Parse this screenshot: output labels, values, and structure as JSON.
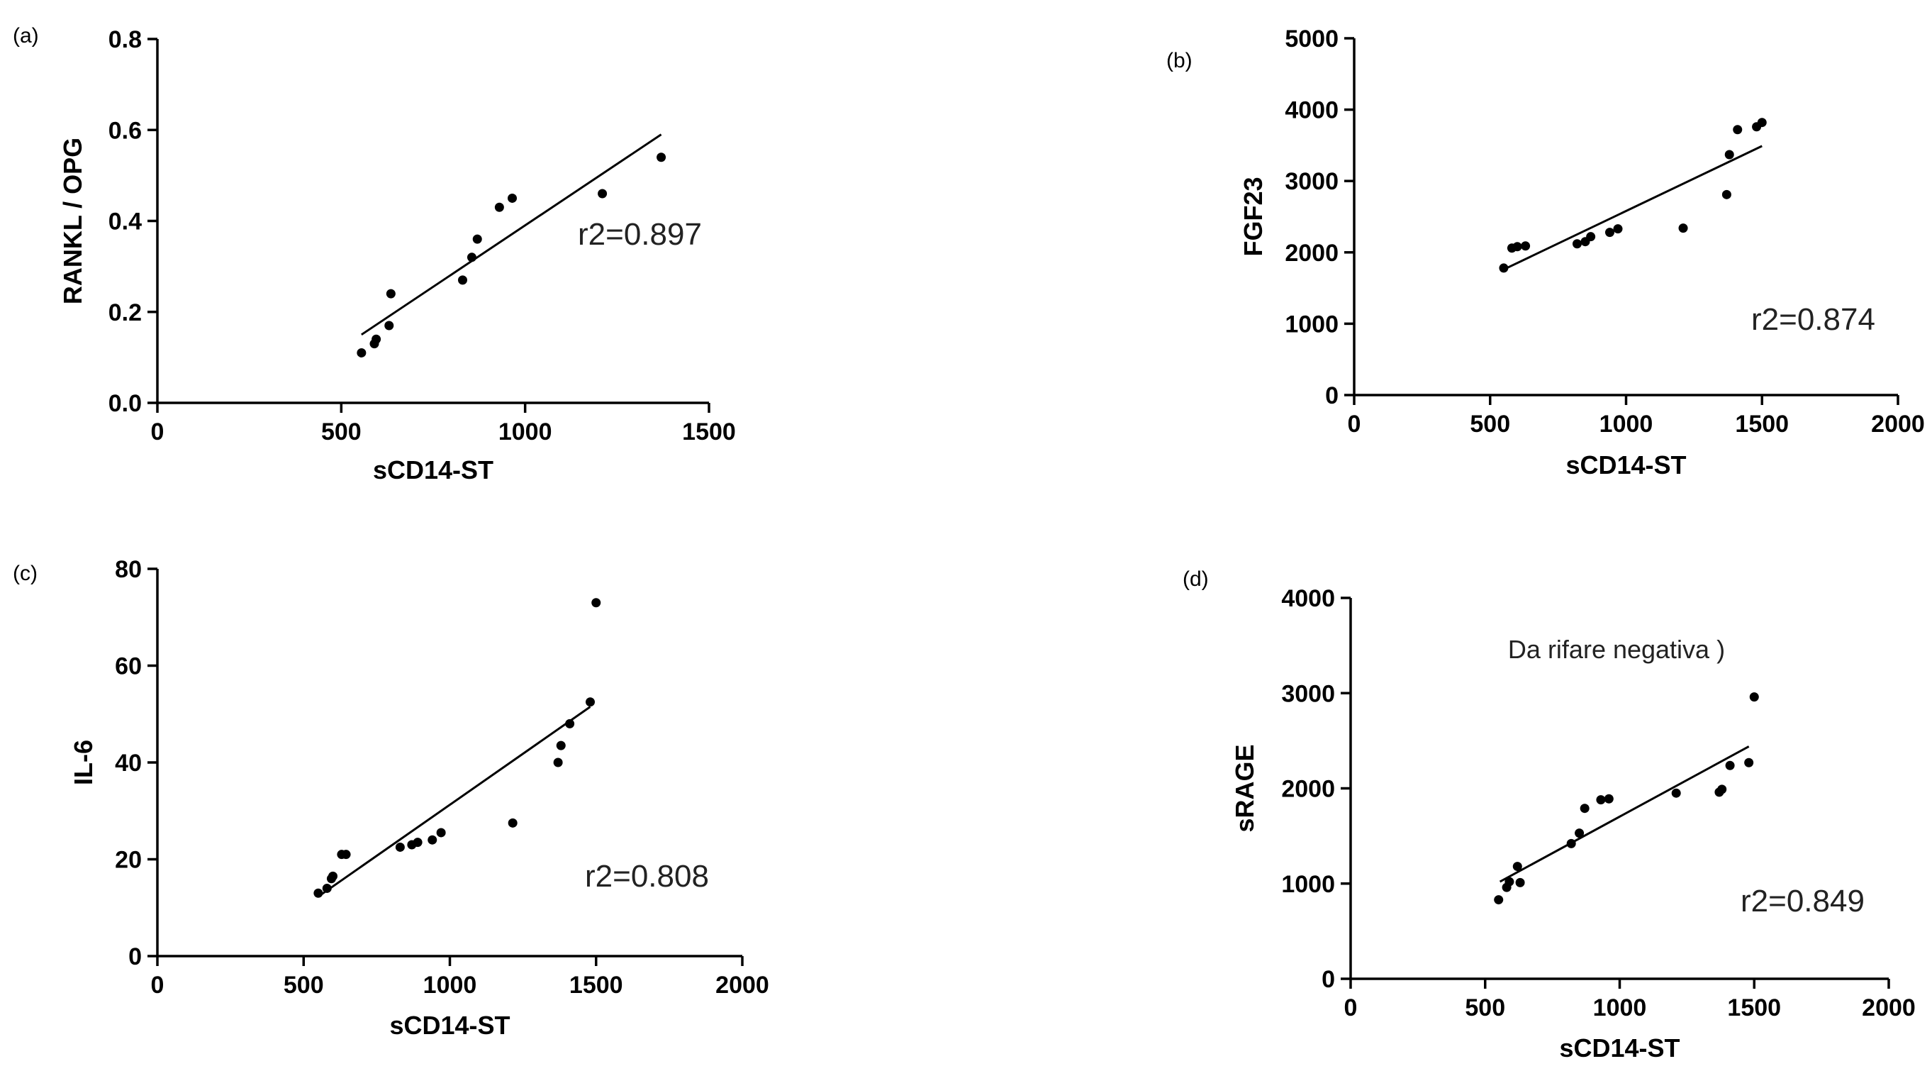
{
  "chart_data": [
    {
      "type": "scatter",
      "panel_label": "(a)",
      "xlabel": "sCD14-ST",
      "ylabel": "RANKL / OPG",
      "xlim": [
        0,
        1500
      ],
      "ylim": [
        0,
        0.8
      ],
      "xticks": [
        "0",
        "500",
        "1000",
        "1500"
      ],
      "yticks": [
        "0.0",
        "0.2",
        "0.4",
        "0.6",
        "0.8"
      ],
      "annotation": "r2=0.897",
      "note": "",
      "points": [
        [
          555,
          0.11
        ],
        [
          590,
          0.13
        ],
        [
          595,
          0.14
        ],
        [
          630,
          0.17
        ],
        [
          635,
          0.24
        ],
        [
          830,
          0.27
        ],
        [
          855,
          0.32
        ],
        [
          870,
          0.36
        ],
        [
          930,
          0.43
        ],
        [
          965,
          0.45
        ],
        [
          1210,
          0.46
        ],
        [
          1370,
          0.54
        ]
      ],
      "fit": [
        [
          555,
          0.15
        ],
        [
          1370,
          0.59
        ]
      ]
    },
    {
      "type": "scatter",
      "panel_label": "(b)",
      "xlabel": "sCD14-ST",
      "ylabel": "FGF23",
      "xlim": [
        0,
        2000
      ],
      "ylim": [
        0,
        5000
      ],
      "xticks": [
        "0",
        "500",
        "1000",
        "1500",
        "2000"
      ],
      "yticks": [
        "0",
        "1000",
        "2000",
        "3000",
        "4000",
        "5000"
      ],
      "annotation": "r2=0.874",
      "note": "",
      "points": [
        [
          550,
          1780
        ],
        [
          580,
          2060
        ],
        [
          600,
          2080
        ],
        [
          630,
          2090
        ],
        [
          820,
          2120
        ],
        [
          850,
          2150
        ],
        [
          870,
          2220
        ],
        [
          940,
          2280
        ],
        [
          970,
          2330
        ],
        [
          1210,
          2340
        ],
        [
          1370,
          2810
        ],
        [
          1380,
          3370
        ],
        [
          1410,
          3720
        ],
        [
          1480,
          3760
        ],
        [
          1500,
          3820
        ]
      ],
      "fit": [
        [
          550,
          1760
        ],
        [
          1500,
          3490
        ]
      ]
    },
    {
      "type": "scatter",
      "panel_label": "(c)",
      "xlabel": "sCD14-ST",
      "ylabel": "IL-6",
      "xlim": [
        0,
        2000
      ],
      "ylim": [
        0,
        80
      ],
      "xticks": [
        "0",
        "500",
        "1000",
        "1500",
        "2000"
      ],
      "yticks": [
        "0",
        "20",
        "40",
        "60",
        "80"
      ],
      "annotation": "r2=0.808",
      "note": "",
      "points": [
        [
          550,
          13
        ],
        [
          580,
          14
        ],
        [
          595,
          16
        ],
        [
          600,
          16.5
        ],
        [
          630,
          21
        ],
        [
          645,
          21
        ],
        [
          830,
          22.5
        ],
        [
          870,
          23
        ],
        [
          890,
          23.5
        ],
        [
          940,
          24
        ],
        [
          970,
          25.5
        ],
        [
          1215,
          27.5
        ],
        [
          1370,
          40
        ],
        [
          1380,
          43.5
        ],
        [
          1410,
          48
        ],
        [
          1480,
          52.5
        ],
        [
          1500,
          73
        ]
      ],
      "fit": [
        [
          555,
          12.5
        ],
        [
          1480,
          51.5
        ]
      ]
    },
    {
      "type": "scatter",
      "panel_label": "(d)",
      "xlabel": "sCD14-ST",
      "ylabel": "sRAGE",
      "xlim": [
        0,
        2000
      ],
      "ylim": [
        0,
        4000
      ],
      "xticks": [
        "0",
        "500",
        "1000",
        "1500",
        "2000"
      ],
      "yticks": [
        "0",
        "1000",
        "2000",
        "3000",
        "4000"
      ],
      "annotation": "r2=0.849",
      "note": "Da rifare negativa )",
      "points": [
        [
          550,
          830
        ],
        [
          580,
          960
        ],
        [
          590,
          1020
        ],
        [
          620,
          1180
        ],
        [
          630,
          1010
        ],
        [
          820,
          1420
        ],
        [
          850,
          1530
        ],
        [
          870,
          1790
        ],
        [
          930,
          1880
        ],
        [
          960,
          1890
        ],
        [
          1210,
          1950
        ],
        [
          1370,
          1960
        ],
        [
          1380,
          1990
        ],
        [
          1410,
          2240
        ],
        [
          1480,
          2270
        ],
        [
          1500,
          2960
        ]
      ],
      "fit": [
        [
          555,
          1020
        ],
        [
          1480,
          2440
        ]
      ]
    }
  ]
}
